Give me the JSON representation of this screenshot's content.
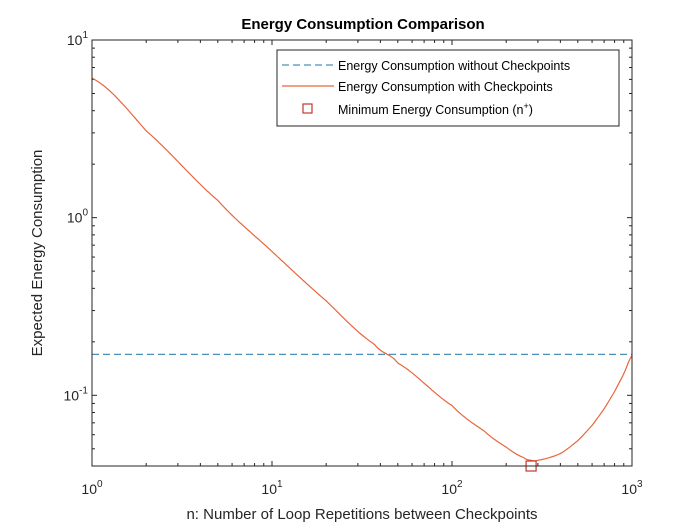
{
  "chart_data": {
    "type": "line",
    "title": "Energy Consumption Comparison",
    "xlabel": "n: Number of Loop Repetitions between Checkpoints",
    "ylabel": "Expected Energy Consumption",
    "xscale": "log",
    "yscale": "log",
    "xlim": [
      1,
      1000
    ],
    "ylim": [
      0.04,
      10
    ],
    "x_ticks": [
      {
        "base": "10",
        "exp": "0"
      },
      {
        "base": "10",
        "exp": "1"
      },
      {
        "base": "10",
        "exp": "2"
      },
      {
        "base": "10",
        "exp": "3"
      }
    ],
    "y_ticks": [
      {
        "value": 0.1,
        "base": "10",
        "exp": "-1"
      },
      {
        "value": 1,
        "base": "10",
        "exp": "0"
      },
      {
        "value": 10,
        "base": "10",
        "exp": "1"
      }
    ],
    "legend_position": "top-right",
    "legend": [
      {
        "label": "Energy Consumption without Checkpoints"
      },
      {
        "label": "Energy Consumption with Checkpoints"
      },
      {
        "label": "Minimum Energy Consumption (n",
        "sup": "+",
        "suffix": ")"
      }
    ],
    "series": [
      {
        "id": "without",
        "style": "dashed",
        "color": "#4A90B9",
        "x": [
          1,
          1000
        ],
        "y": [
          0.17,
          0.17
        ]
      },
      {
        "id": "with",
        "style": "solid",
        "color": "#E8663C",
        "x": [
          1,
          2,
          5,
          10,
          20,
          37,
          50,
          100,
          150,
          200,
          250,
          275,
          300,
          400,
          500,
          600,
          700,
          800,
          900,
          1000
        ],
        "y": [
          6.1,
          3.08,
          1.25,
          0.645,
          0.34,
          0.194,
          0.152,
          0.0876,
          0.0633,
          0.0511,
          0.0446,
          0.043,
          0.0431,
          0.047,
          0.0556,
          0.0677,
          0.0839,
          0.105,
          0.132,
          0.167
        ]
      }
    ],
    "markers": [
      {
        "id": "minimum",
        "shape": "square",
        "color": "#C0392B",
        "x": 275,
        "y": 0.04
      }
    ]
  }
}
